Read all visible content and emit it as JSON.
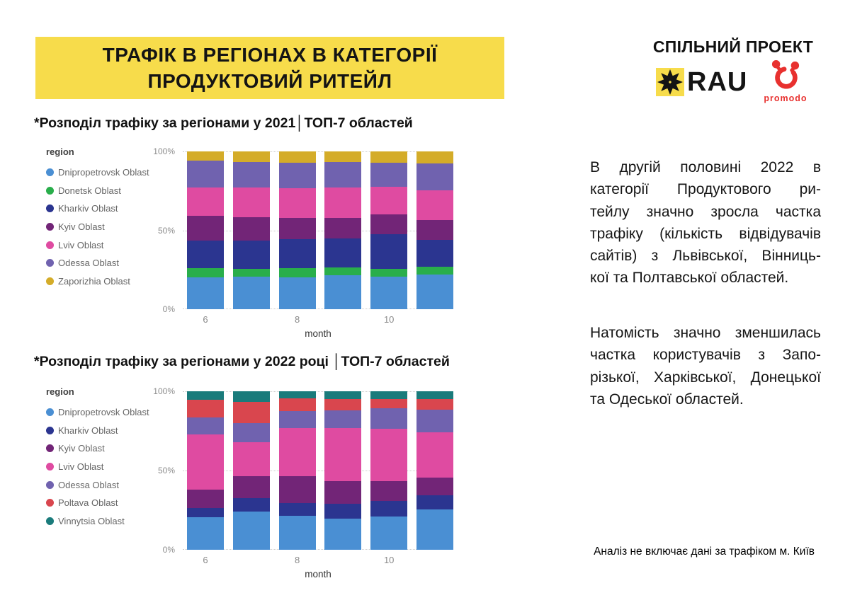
{
  "header": {
    "title_line1": "ТРАФІК В РЕГІОНАХ В КАТЕГОРІЇ",
    "title_line2": "ПРОДУКТОВИЙ РИТЕЙЛ",
    "banner_color": "#F7DC4B",
    "partner_label": "СПІЛЬНИЙ ПРОЕКТ",
    "rau_logo_text": "RAU",
    "promodo_logo_text": "promodo",
    "promodo_color": "#E8312F"
  },
  "right_column": {
    "paragraph1_lines": [
      "В другій половині 2022 в",
      "категорії Продуктового ри-",
      "тейлу значно зросла частка",
      "трафіку (кількість відвідувачів",
      "сайтів) з Львівської, Вінниць-",
      "кої та Полтавської областей."
    ],
    "paragraph2_lines": [
      "Натомість значно зменшилась",
      "частка користувачів з Запо-",
      "різької, Харківської, Донецької",
      "та Одеської областей."
    ],
    "footnote": "Аналіз не включає дані за трафіком м. Київ"
  },
  "chart_data": [
    {
      "type": "bar",
      "stacked": true,
      "units": "percent",
      "title": "*Розподіл трафіку за регіонами у 2021│ТОП-7 областей",
      "legend_title": "region",
      "legend_position": "left",
      "xlabel": "month",
      "x": [
        6,
        7,
        8,
        9,
        10,
        11
      ],
      "x_tick_labels": [
        "6",
        "",
        "8",
        "",
        "10",
        ""
      ],
      "ylim": [
        0,
        100
      ],
      "y_ticks": [
        {
          "label": "100%",
          "value": 100
        },
        {
          "label": "50%",
          "value": 50
        },
        {
          "label": "0%",
          "value": 0
        }
      ],
      "series": [
        {
          "name": "Dnipropetrovsk Oblast",
          "color": "#4A8FD3",
          "values": [
            20,
            20.5,
            20,
            21.5,
            20.5,
            22
          ]
        },
        {
          "name": "Donetsk Oblast",
          "color": "#29AE4B",
          "values": [
            6,
            5,
            6,
            5,
            5,
            5
          ]
        },
        {
          "name": "Kharkiv Oblast",
          "color": "#2B3590",
          "values": [
            17.5,
            18,
            18.5,
            18.5,
            22,
            17
          ]
        },
        {
          "name": "Kyiv Oblast",
          "color": "#722577",
          "values": [
            15.5,
            15,
            13.5,
            13,
            12.5,
            12.5
          ]
        },
        {
          "name": "Lviv Oblast",
          "color": "#DF4BA1",
          "values": [
            18,
            18.5,
            18.5,
            19,
            17.5,
            19
          ]
        },
        {
          "name": "Odessa Oblast",
          "color": "#7062AF",
          "values": [
            17,
            16.5,
            16.5,
            16.5,
            15.5,
            17
          ]
        },
        {
          "name": "Zaporizhia Oblast",
          "color": "#D4AC29",
          "values": [
            6,
            6.5,
            7,
            6.5,
            7,
            7.5
          ]
        }
      ]
    },
    {
      "type": "bar",
      "stacked": true,
      "units": "percent",
      "title": "*Розподіл трафіку за регіонами у 2022 році │ТОП-7 областей",
      "legend_title": "region",
      "legend_position": "left",
      "xlabel": "month",
      "x": [
        6,
        7,
        8,
        9,
        10,
        11
      ],
      "x_tick_labels": [
        "6",
        "",
        "8",
        "",
        "10",
        ""
      ],
      "ylim": [
        0,
        100
      ],
      "y_ticks": [
        {
          "label": "100%",
          "value": 100
        },
        {
          "label": "50%",
          "value": 50
        },
        {
          "label": "0%",
          "value": 0
        }
      ],
      "series": [
        {
          "name": "Dnipropetrovsk Oblast",
          "color": "#4A8FD3",
          "values": [
            20.5,
            24,
            21.5,
            19.5,
            21,
            25.5
          ]
        },
        {
          "name": "Kharkiv Oblast",
          "color": "#2B3590",
          "values": [
            6,
            8.5,
            8,
            9.5,
            10,
            9
          ]
        },
        {
          "name": "Kyiv Oblast",
          "color": "#722577",
          "values": [
            11.5,
            14,
            17,
            14.5,
            12.5,
            11
          ]
        },
        {
          "name": "Lviv Oblast",
          "color": "#DF4BA1",
          "values": [
            35,
            21.5,
            30.5,
            33.5,
            33,
            28.5
          ]
        },
        {
          "name": "Odessa Oblast",
          "color": "#7062AF",
          "values": [
            10.5,
            12,
            10.5,
            11,
            13,
            14.5
          ]
        },
        {
          "name": "Poltava Oblast",
          "color": "#D9464E",
          "values": [
            11,
            13.5,
            8,
            7,
            5.5,
            6.5
          ]
        },
        {
          "name": "Vinnytsia Oblast",
          "color": "#1A7B7B",
          "values": [
            5.5,
            6.5,
            4.5,
            5,
            5,
            5
          ]
        }
      ]
    }
  ]
}
